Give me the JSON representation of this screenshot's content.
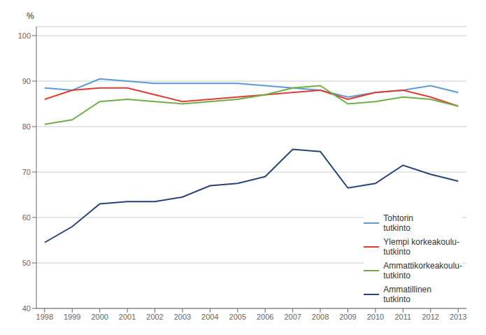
{
  "chart_data": {
    "type": "line",
    "ylabel": "%",
    "x": [
      1998,
      1999,
      2000,
      2001,
      2002,
      2003,
      2004,
      2005,
      2006,
      2007,
      2008,
      2009,
      2010,
      2011,
      2012,
      2013
    ],
    "xlim": [
      1997.7,
      2013.3
    ],
    "xticks": [
      1998,
      1999,
      2000,
      2001,
      2002,
      2003,
      2004,
      2005,
      2006,
      2007,
      2008,
      2009,
      2010,
      2011,
      2012,
      2013
    ],
    "ylim": [
      40,
      102
    ],
    "yticks": [
      40,
      50,
      60,
      70,
      80,
      90,
      100
    ],
    "grid": true,
    "legend": "lower right",
    "series": [
      {
        "name": "Tohtorin\ntutkinto",
        "color": "#5b9bd5",
        "values": [
          88.5,
          88.0,
          90.5,
          90.0,
          89.5,
          89.5,
          89.5,
          89.5,
          89.0,
          88.5,
          88.0,
          86.5,
          87.5,
          88.0,
          89.0,
          87.5
        ]
      },
      {
        "name": "Ylempi korkeakoulu-\ntutkinto",
        "color": "#e03c31",
        "values": [
          86.0,
          88.0,
          88.5,
          88.5,
          87.0,
          85.5,
          86.0,
          86.5,
          87.0,
          87.5,
          88.0,
          86.0,
          87.5,
          88.0,
          86.5,
          84.5
        ]
      },
      {
        "name": "Ammattikorkeakoulu-\ntutkinto",
        "color": "#70ad47",
        "values": [
          80.5,
          81.5,
          85.5,
          86.0,
          85.5,
          85.0,
          85.5,
          86.0,
          87.0,
          88.5,
          89.0,
          85.0,
          85.5,
          86.5,
          86.0,
          84.5
        ]
      },
      {
        "name": "Ammatillinen\ntutkinto",
        "color": "#264478",
        "values": [
          54.5,
          58.0,
          63.0,
          63.5,
          63.5,
          64.5,
          67.0,
          67.5,
          69.0,
          75.0,
          74.5,
          66.5,
          67.5,
          71.5,
          69.5,
          68.0
        ]
      }
    ]
  }
}
